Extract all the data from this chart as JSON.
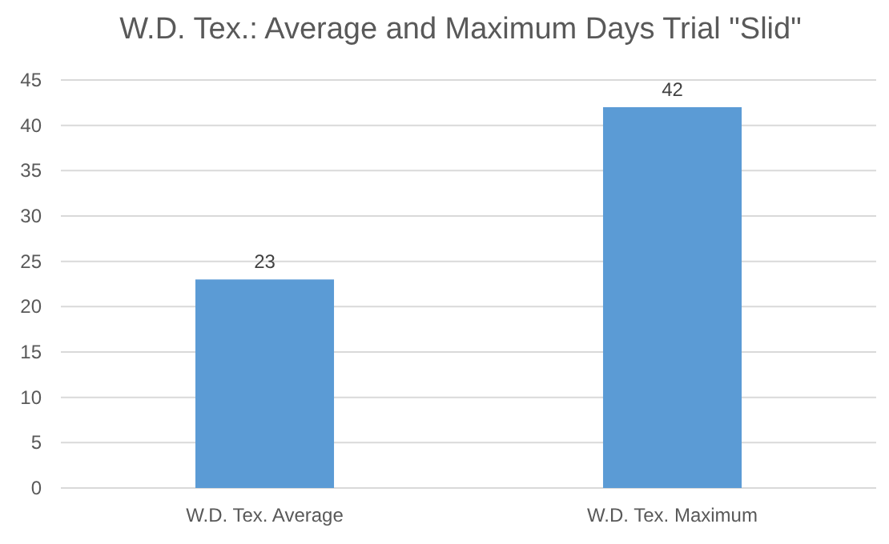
{
  "chart_data": {
    "type": "bar",
    "title": "W.D. Tex.: Average and Maximum Days Trial \"Slid\"",
    "categories": [
      "W.D. Tex. Average",
      "W.D. Tex. Maximum"
    ],
    "values": [
      23,
      42
    ],
    "color": "#5b9bd5",
    "ylim": [
      0,
      45
    ],
    "yticks": [
      0,
      5,
      10,
      15,
      20,
      25,
      30,
      35,
      40,
      45
    ],
    "grid": "y",
    "data_labels": true
  }
}
